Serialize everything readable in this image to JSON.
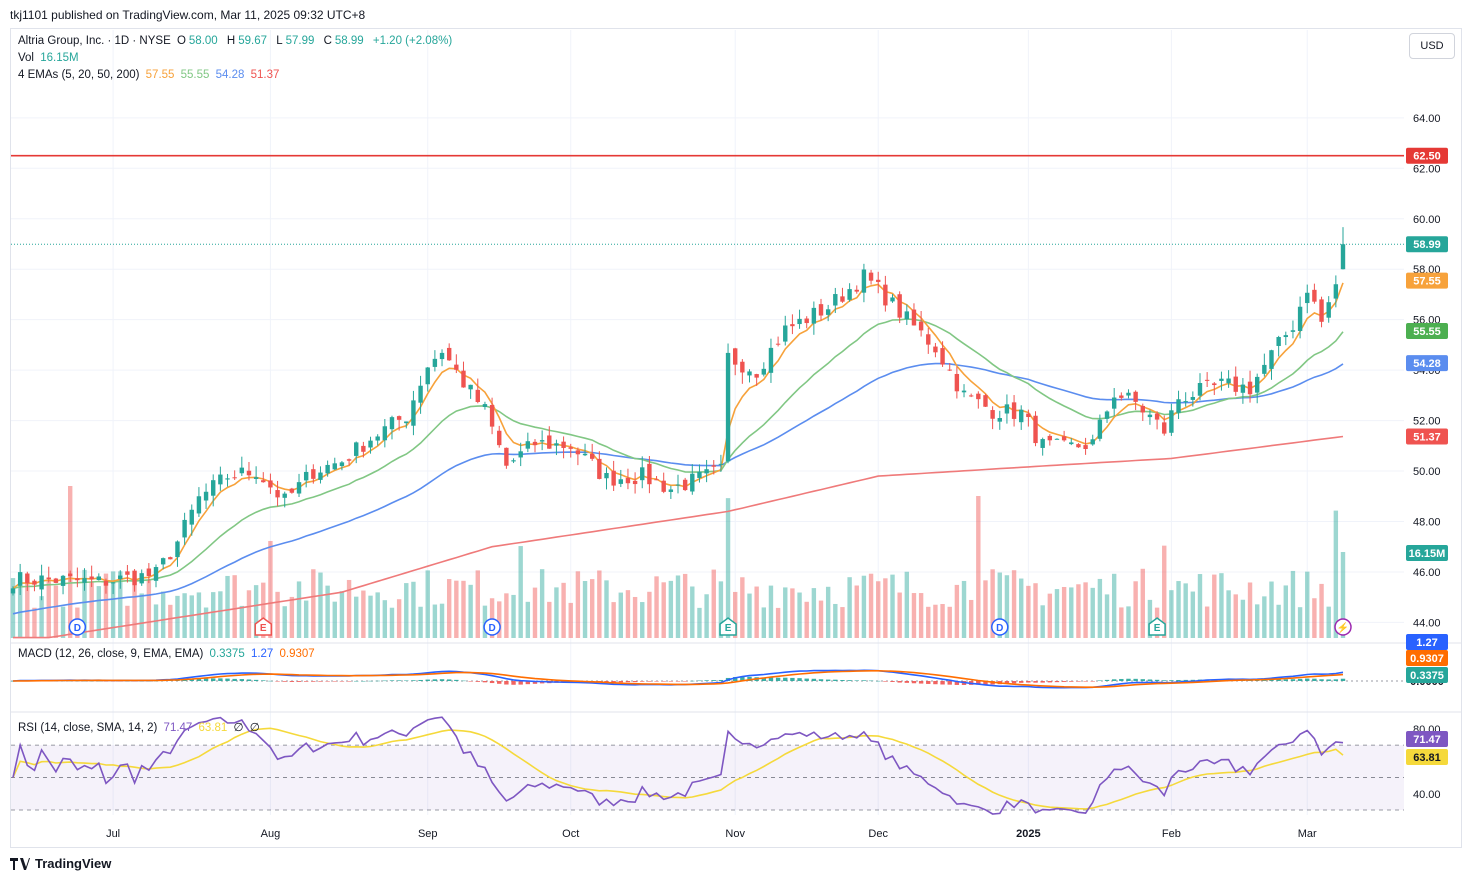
{
  "header": {
    "published": "tkj1101 published on TradingView.com, Mar 11, 2025 09:32 UTC+8"
  },
  "legend": {
    "symbol": "Altria Group, Inc. · 1D · NYSE",
    "o_label": "O",
    "o": "58.00",
    "h_label": "H",
    "h": "59.67",
    "l_label": "L",
    "l": "57.99",
    "c_label": "C",
    "c": "58.99",
    "change": "+1.20 (+2.08%)",
    "vol_label": "Vol",
    "vol": "16.15M",
    "ema_label": "4 EMAs (5, 20, 50, 200)",
    "ema_values": [
      "57.55",
      "55.55",
      "54.28",
      "51.37"
    ],
    "macd_label": "MACD (12, 26, close, 9, EMA, EMA)",
    "macd_values": [
      "0.3375",
      "1.27",
      "0.9307"
    ],
    "rsi_label": "RSI (14, close, SMA, 14, 2)",
    "rsi_values": [
      "71.47",
      "63.81",
      "∅",
      "∅"
    ]
  },
  "currency_button": "USD",
  "footer": {
    "brand": "TradingView"
  },
  "colors": {
    "up": "#26a69a",
    "down": "#ef5350",
    "ema5": "#f7a23b",
    "ema20": "#81c784",
    "ema50": "#5b8def",
    "ema200": "#ef7a7a",
    "hline": "#e53935",
    "macd": "#2962ff",
    "signal": "#ff6d00",
    "rsi": "#7e57c2",
    "rsi_ma": "#f5d93b"
  },
  "chart_data": {
    "type": "candlestick",
    "price_axis_ticks": [
      "64.00",
      "62.00",
      "60.00",
      "58.00",
      "56.00",
      "54.00",
      "52.00",
      "50.00",
      "48.00",
      "46.00",
      "44.00"
    ],
    "ylim": [
      43.7,
      65.5
    ],
    "time_axis_ticks": [
      "Jul",
      "Aug",
      "Sep",
      "Oct",
      "Nov",
      "Dec",
      "2025",
      "Feb",
      "Mar"
    ],
    "horizontal_line": 62.5,
    "last_price": 58.99,
    "price_labels": {
      "hline": "62.50",
      "last": "58.99",
      "ema5": "57.55",
      "ema20": "55.55",
      "ema50": "54.28",
      "ema200": "51.37",
      "volume": "16.15M"
    },
    "events": [
      {
        "letter": "D",
        "date": "Jun 24",
        "kind": "dividend"
      },
      {
        "letter": "E",
        "date": "Jul 31",
        "kind": "earnings"
      },
      {
        "letter": "D",
        "date": "Sep 16",
        "kind": "dividend"
      },
      {
        "letter": "E",
        "date": "Oct 31",
        "kind": "earnings"
      },
      {
        "letter": "D",
        "date": "Dec 26",
        "kind": "dividend"
      },
      {
        "letter": "E",
        "date": "Jan 30",
        "kind": "earnings"
      },
      {
        "letter": "⚡",
        "date": "Mar 10",
        "kind": "upcoming"
      }
    ],
    "ohlc_anchors": [
      [
        "Jun 17",
        45.7
      ],
      [
        "Jun 27",
        45.6
      ],
      [
        "Jul 10",
        45.9
      ],
      [
        "Jul 15",
        47.2
      ],
      [
        "Jul 18",
        48.9
      ],
      [
        "Jul 24",
        49.8
      ],
      [
        "Jul 30",
        50.0
      ],
      [
        "Aug 5",
        48.8
      ],
      [
        "Aug 9",
        50.0
      ],
      [
        "Aug 15",
        50.4
      ],
      [
        "Aug 21",
        51.3
      ],
      [
        "Aug 28",
        52.2
      ],
      [
        "Sep 3",
        54.2
      ],
      [
        "Sep 5",
        54.8
      ],
      [
        "Sep 10",
        53.5
      ],
      [
        "Sep 13",
        52.4
      ],
      [
        "Sep 18",
        50.2
      ],
      [
        "Sep 24",
        51.1
      ],
      [
        "Oct 1",
        51.0
      ],
      [
        "Oct 8",
        49.7
      ],
      [
        "Oct 15",
        49.8
      ],
      [
        "Oct 21",
        49.3
      ],
      [
        "Oct 30",
        50.0
      ],
      [
        "Oct 31",
        54.5
      ],
      [
        "Nov 6",
        54.0
      ],
      [
        "Nov 12",
        55.6
      ],
      [
        "Nov 20",
        56.5
      ],
      [
        "Nov 27",
        57.7
      ],
      [
        "Dec 2",
        57.2
      ],
      [
        "Dec 6",
        56.0
      ],
      [
        "Dec 12",
        54.9
      ],
      [
        "Dec 18",
        53.0
      ],
      [
        "Dec 24",
        52.4
      ],
      [
        "Dec 31",
        52.3
      ],
      [
        "Jan 6",
        51.0
      ],
      [
        "Jan 10",
        50.9
      ],
      [
        "Jan 16",
        51.1
      ],
      [
        "Jan 22",
        53.1
      ],
      [
        "Jan 27",
        52.7
      ],
      [
        "Jan 31",
        51.6
      ],
      [
        "Feb 4",
        52.9
      ],
      [
        "Feb 12",
        53.4
      ],
      [
        "Feb 19",
        53.3
      ],
      [
        "Feb 24",
        54.6
      ],
      [
        "Feb 27",
        55.8
      ],
      [
        "Mar 3",
        57.3
      ],
      [
        "Mar 5",
        55.9
      ],
      [
        "Mar 7",
        57.4
      ],
      [
        "Mar 10",
        58.99
      ]
    ],
    "ema200_anchors": [
      [
        "Jun 17",
        43.4
      ],
      [
        "Aug 15",
        45.2
      ],
      [
        "Sep 16",
        47.0
      ],
      [
        "Oct 31",
        48.4
      ],
      [
        "Dec 2",
        49.8
      ],
      [
        "Jan 6",
        50.2
      ],
      [
        "Feb 3",
        50.5
      ],
      [
        "Mar 10",
        51.37
      ]
    ],
    "volume_last": "16.15M",
    "macd_axis_label": "0.0000",
    "macd_last": {
      "macd": 1.27,
      "signal": 0.9307,
      "hist": 0.3375
    },
    "rsi_axis_ticks": [
      "80.00",
      "40.00"
    ],
    "rsi_bands": [
      70,
      50,
      30
    ],
    "rsi_last": {
      "rsi": 71.47,
      "ma": 63.81
    }
  }
}
